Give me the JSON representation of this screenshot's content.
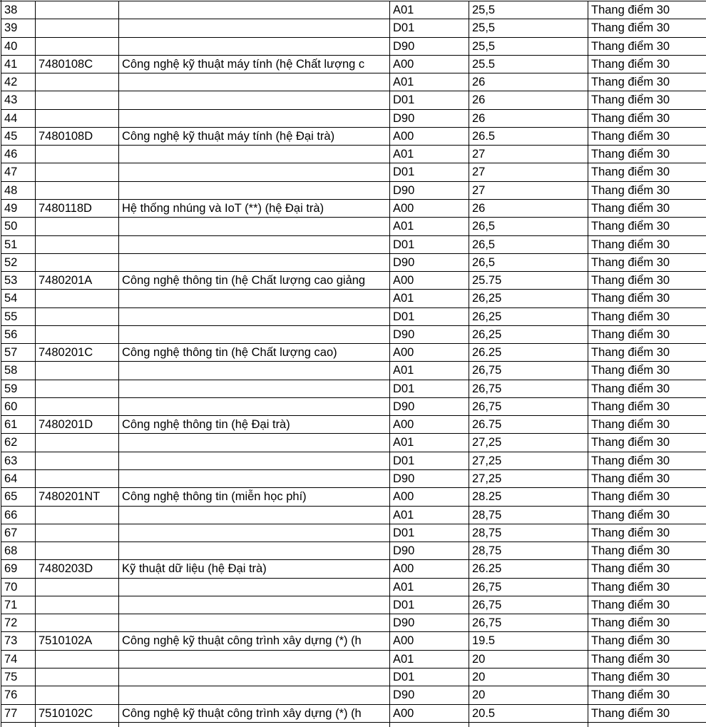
{
  "table": {
    "rows": [
      [
        38,
        null,
        null,
        "A01",
        "25,5",
        "Thang điểm 30"
      ],
      [
        39,
        null,
        null,
        "D01",
        "25,5",
        "Thang điểm 30"
      ],
      [
        40,
        null,
        null,
        "D90",
        "25,5",
        "Thang điểm 30"
      ],
      [
        41,
        "7480108C",
        "Công nghệ kỹ thuật máy tính (hệ Chất lượng c",
        "A00",
        "25.5",
        "Thang điểm 30"
      ],
      [
        42,
        null,
        null,
        "A01",
        "26",
        "Thang điểm 30"
      ],
      [
        43,
        null,
        null,
        "D01",
        "26",
        "Thang điểm 30"
      ],
      [
        44,
        null,
        null,
        "D90",
        "26",
        "Thang điểm 30"
      ],
      [
        45,
        "7480108D",
        "Công nghệ kỹ thuật máy tính (hệ Đại trà)",
        "A00",
        "26.5",
        "Thang điểm 30"
      ],
      [
        46,
        null,
        null,
        "A01",
        "27",
        "Thang điểm 30"
      ],
      [
        47,
        null,
        null,
        "D01",
        "27",
        "Thang điểm 30"
      ],
      [
        48,
        null,
        null,
        "D90",
        "27",
        "Thang điểm 30"
      ],
      [
        49,
        "7480118D",
        "Hệ thống nhúng và IoT (**) (hệ Đại trà)",
        "A00",
        "26",
        "Thang điểm 30"
      ],
      [
        50,
        null,
        null,
        "A01",
        "26,5",
        "Thang điểm 30"
      ],
      [
        51,
        null,
        null,
        "D01",
        "26,5",
        "Thang điểm 30"
      ],
      [
        52,
        null,
        null,
        "D90",
        "26,5",
        "Thang điểm 30"
      ],
      [
        53,
        "7480201A",
        "Công nghệ thông tin (hệ Chất lượng cao giảng",
        "A00",
        "25.75",
        "Thang điểm 30"
      ],
      [
        54,
        null,
        null,
        "A01",
        "26,25",
        "Thang điểm 30"
      ],
      [
        55,
        null,
        null,
        "D01",
        "26,25",
        "Thang điểm 30"
      ],
      [
        56,
        null,
        null,
        "D90",
        "26,25",
        "Thang điểm 30"
      ],
      [
        57,
        "7480201C",
        "Công nghệ thông tin (hệ Chất lượng cao)",
        "A00",
        "26.25",
        "Thang điểm 30"
      ],
      [
        58,
        null,
        null,
        "A01",
        "26,75",
        "Thang điểm 30"
      ],
      [
        59,
        null,
        null,
        "D01",
        "26,75",
        "Thang điểm 30"
      ],
      [
        60,
        null,
        null,
        "D90",
        "26,75",
        "Thang điểm 30"
      ],
      [
        61,
        "7480201D",
        "Công nghệ thông tin (hệ Đại trà)",
        "A00",
        "26.75",
        "Thang điểm 30"
      ],
      [
        62,
        null,
        null,
        "A01",
        "27,25",
        "Thang điểm 30"
      ],
      [
        63,
        null,
        null,
        "D01",
        "27,25",
        "Thang điểm 30"
      ],
      [
        64,
        null,
        null,
        "D90",
        "27,25",
        "Thang điểm 30"
      ],
      [
        65,
        "7480201NT",
        "Công nghệ thông tin (miễn học phí)",
        "A00",
        "28.25",
        "Thang điểm 30"
      ],
      [
        66,
        null,
        null,
        "A01",
        "28,75",
        "Thang điểm 30"
      ],
      [
        67,
        null,
        null,
        "D01",
        "28,75",
        "Thang điểm 30"
      ],
      [
        68,
        null,
        null,
        "D90",
        "28,75",
        "Thang điểm 30"
      ],
      [
        69,
        "7480203D",
        "Kỹ thuật dữ liệu (hệ Đại trà)",
        "A00",
        "26.25",
        "Thang điểm 30"
      ],
      [
        70,
        null,
        null,
        "A01",
        "26,75",
        "Thang điểm 30"
      ],
      [
        71,
        null,
        null,
        "D01",
        "26,75",
        "Thang điểm 30"
      ],
      [
        72,
        null,
        null,
        "D90",
        "26,75",
        "Thang điểm 30"
      ],
      [
        73,
        "7510102A",
        "Công nghệ kỹ thuật công trình xây dựng (*) (h",
        "A00",
        "19.5",
        "Thang điểm 30"
      ],
      [
        74,
        null,
        null,
        "A01",
        "20",
        "Thang điểm 30"
      ],
      [
        75,
        null,
        null,
        "D01",
        "20",
        "Thang điểm 30"
      ],
      [
        76,
        null,
        null,
        "D90",
        "20",
        "Thang điểm 30"
      ],
      [
        77,
        "7510102C",
        "Công nghệ kỹ thuật công trình xây dựng (*) (h",
        "A00",
        "20.5",
        "Thang điểm 30"
      ]
    ]
  }
}
